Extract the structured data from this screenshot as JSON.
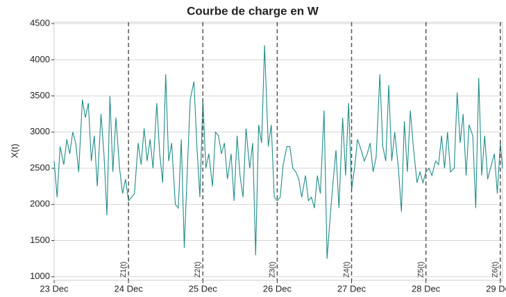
{
  "chart_data": {
    "type": "line",
    "title": "Courbe de charge en W",
    "ylabel": "X(t)",
    "x": [
      23,
      23.04,
      23.08,
      23.13,
      23.17,
      23.21,
      23.25,
      23.29,
      23.33,
      23.38,
      23.42,
      23.46,
      23.5,
      23.54,
      23.58,
      23.63,
      23.67,
      23.71,
      23.75,
      23.79,
      23.83,
      23.88,
      23.92,
      23.96,
      24,
      24.04,
      24.08,
      24.13,
      24.17,
      24.21,
      24.25,
      24.29,
      24.33,
      24.38,
      24.42,
      24.46,
      24.5,
      24.54,
      24.58,
      24.63,
      24.67,
      24.71,
      24.75,
      24.79,
      24.83,
      24.88,
      24.92,
      24.96,
      25,
      25.04,
      25.08,
      25.13,
      25.17,
      25.21,
      25.25,
      25.29,
      25.33,
      25.38,
      25.42,
      25.46,
      25.5,
      25.54,
      25.58,
      25.63,
      25.67,
      25.71,
      25.75,
      25.79,
      25.83,
      25.88,
      25.92,
      25.96,
      26,
      26.04,
      26.08,
      26.13,
      26.17,
      26.21,
      26.25,
      26.29,
      26.33,
      26.38,
      26.42,
      26.46,
      26.5,
      26.54,
      26.58,
      26.63,
      26.67,
      26.71,
      26.75,
      26.79,
      26.83,
      26.88,
      26.92,
      26.96,
      27,
      27.04,
      27.08,
      27.13,
      27.17,
      27.21,
      27.25,
      27.29,
      27.33,
      27.38,
      27.42,
      27.46,
      27.5,
      27.54,
      27.58,
      27.63,
      27.67,
      27.71,
      27.75,
      27.79,
      27.83,
      27.88,
      27.92,
      27.96,
      28,
      28.04,
      28.08,
      28.13,
      28.17,
      28.21,
      28.25,
      28.29,
      28.33,
      28.38,
      28.42,
      28.46,
      28.5,
      28.54,
      28.58,
      28.63,
      28.67,
      28.71,
      28.75,
      28.79,
      28.83,
      28.88,
      28.92,
      28.96,
      29,
      29.03
    ],
    "series": [
      {
        "name": "X(t)",
        "color": "#1f8c88",
        "values": [
          2600,
          2100,
          2800,
          2550,
          2900,
          2700,
          3000,
          2850,
          2450,
          3450,
          3200,
          3400,
          2600,
          2950,
          2250,
          3250,
          2700,
          1850,
          3500,
          2450,
          3200,
          2500,
          2150,
          2350,
          2050,
          2100,
          2150,
          2850,
          2550,
          3050,
          2600,
          2900,
          2500,
          3400,
          2700,
          2300,
          3800,
          2600,
          2850,
          2000,
          1950,
          2900,
          1400,
          2450,
          3450,
          3700,
          2800,
          2100,
          3450,
          2500,
          2700,
          2250,
          3000,
          2950,
          2700,
          2850,
          2350,
          2700,
          2050,
          2950,
          2400,
          2100,
          3050,
          2500,
          2850,
          1300,
          3100,
          2850,
          4200,
          2800,
          3100,
          2100,
          2050,
          2100,
          2550,
          2800,
          2800,
          2500,
          2450,
          2350,
          2100,
          2400,
          2050,
          2100,
          1950,
          2400,
          2150,
          3300,
          1250,
          1800,
          2300,
          2750,
          1950,
          3200,
          2400,
          3400,
          2200,
          2500,
          2900,
          2750,
          2600,
          2700,
          2850,
          2450,
          2650,
          3800,
          2800,
          2600,
          3650,
          2600,
          3000,
          2500,
          1900,
          3150,
          2450,
          3300,
          2800,
          2300,
          2450,
          2300,
          2450,
          2500,
          2400,
          2600,
          2550,
          2950,
          2500,
          3000,
          2450,
          2500,
          3550,
          2850,
          3250,
          2400,
          3100,
          2950,
          1950,
          3750,
          2400,
          2950,
          2350,
          2550,
          2700,
          2150,
          2850,
          2500
        ]
      }
    ],
    "xlim": [
      23,
      29.03
    ],
    "xticks": [
      {
        "value": 23,
        "label": "23 Dec"
      },
      {
        "value": 24,
        "label": "24 Dec"
      },
      {
        "value": 25,
        "label": "25 Dec"
      },
      {
        "value": 26,
        "label": "26 Dec"
      },
      {
        "value": 27,
        "label": "27 Dec"
      },
      {
        "value": 28,
        "label": "28 Dec"
      },
      {
        "value": 29,
        "label": "29 Dec"
      }
    ],
    "ylim": [
      950,
      4520
    ],
    "yticks": [
      1000,
      1500,
      2000,
      2500,
      3000,
      3500,
      4000,
      4500
    ],
    "grid": true,
    "vlines": [
      {
        "x": 24,
        "label": "Z1(t)"
      },
      {
        "x": 25,
        "label": "Z2(t)"
      },
      {
        "x": 26,
        "label": "Z3(t)"
      },
      {
        "x": 27,
        "label": "Z4(t)"
      },
      {
        "x": 28,
        "label": "Z5(t)"
      },
      {
        "x": 29,
        "label": "Z6(t)"
      }
    ]
  }
}
